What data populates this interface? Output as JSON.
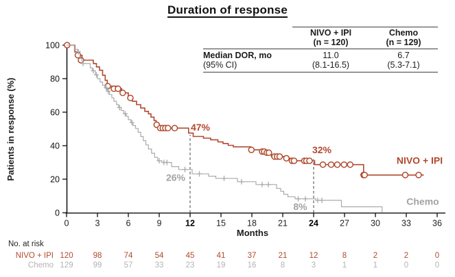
{
  "title": "Duration of response",
  "inset_table": {
    "row_header": {
      "label": "Median DOR, mo",
      "sublabel": "(95% CI)"
    },
    "columns": [
      {
        "name": "NIVO + IPI",
        "n": "(n = 120)",
        "median": "11.0",
        "ci": "(8.1-16.5)"
      },
      {
        "name": "Chemo",
        "n": "(n = 129)",
        "median": "6.7",
        "ci": "(5.3-7.1)"
      }
    ]
  },
  "chart_data": {
    "type": "line",
    "subtype": "kaplan-meier-step",
    "title": "Duration of response",
    "xlabel": "Months",
    "ylabel": "Patients in response (%)",
    "xlim": [
      0,
      36
    ],
    "ylim": [
      0,
      100
    ],
    "xticks": [
      0,
      3,
      6,
      9,
      12,
      15,
      18,
      21,
      24,
      27,
      30,
      33,
      36
    ],
    "yticks": [
      0,
      20,
      40,
      60,
      80,
      100
    ],
    "bold_xticks": [
      12,
      24
    ],
    "grid": false,
    "reference_lines": [
      {
        "month": 12,
        "pct_top": 46.5
      },
      {
        "month": 24,
        "pct_top": 32
      }
    ],
    "series": [
      {
        "name": "NIVO + IPI",
        "color": "#b04a2e",
        "censor_marker": "circle",
        "steps": [
          [
            0,
            100
          ],
          [
            0.8,
            96
          ],
          [
            1.2,
            94
          ],
          [
            1.5,
            91
          ],
          [
            2.6,
            89
          ],
          [
            2.9,
            87
          ],
          [
            3.2,
            85
          ],
          [
            3.5,
            82
          ],
          [
            3.75,
            79
          ],
          [
            3.95,
            75.5
          ],
          [
            4.9,
            74
          ],
          [
            5.35,
            71.5
          ],
          [
            6.0,
            68.5
          ],
          [
            6.4,
            66.5
          ],
          [
            6.8,
            64.5
          ],
          [
            7.2,
            62.5
          ],
          [
            7.6,
            60.5
          ],
          [
            7.95,
            59
          ],
          [
            8.2,
            57
          ],
          [
            8.5,
            55
          ],
          [
            8.7,
            52.5
          ],
          [
            8.95,
            50.5
          ],
          [
            11.85,
            47.5
          ],
          [
            12.3,
            45.5
          ],
          [
            13.3,
            44.5
          ],
          [
            14.0,
            43.5
          ],
          [
            14.7,
            42.3
          ],
          [
            15.2,
            41.3
          ],
          [
            15.7,
            40.2
          ],
          [
            16.2,
            39.3
          ],
          [
            17.9,
            37.5
          ],
          [
            18.9,
            36.5
          ],
          [
            19.4,
            35.8
          ],
          [
            19.9,
            33.5
          ],
          [
            21.2,
            32.5
          ],
          [
            21.8,
            31
          ],
          [
            24.1,
            28.7
          ],
          [
            28.85,
            22.5
          ],
          [
            34.7,
            22.5
          ]
        ],
        "censors": [
          [
            0.05,
            100
          ],
          [
            1.1,
            94
          ],
          [
            1.4,
            91
          ],
          [
            4.0,
            75.5
          ],
          [
            4.6,
            74
          ],
          [
            5.0,
            74
          ],
          [
            5.45,
            71.5
          ],
          [
            6.2,
            68.5
          ],
          [
            8.75,
            52.5
          ],
          [
            9.1,
            50.5
          ],
          [
            9.35,
            50.5
          ],
          [
            9.6,
            50.5
          ],
          [
            9.85,
            50.5
          ],
          [
            10.5,
            50.5
          ],
          [
            17.95,
            37.5
          ],
          [
            19.0,
            36.5
          ],
          [
            19.2,
            36.5
          ],
          [
            19.45,
            35.8
          ],
          [
            19.65,
            35.8
          ],
          [
            20.2,
            33.5
          ],
          [
            20.45,
            33.5
          ],
          [
            20.7,
            33.5
          ],
          [
            21.35,
            32.5
          ],
          [
            21.9,
            31
          ],
          [
            22.1,
            31
          ],
          [
            23.1,
            31
          ],
          [
            23.3,
            31
          ],
          [
            23.6,
            31
          ],
          [
            24.9,
            28.7
          ],
          [
            25.7,
            28.7
          ],
          [
            26.3,
            28.7
          ],
          [
            26.95,
            28.7
          ],
          [
            27.55,
            28.7
          ],
          [
            28.85,
            22.5
          ],
          [
            28.95,
            22.5
          ],
          [
            32.9,
            22.5
          ],
          [
            34.2,
            22.5
          ]
        ]
      },
      {
        "name": "Chemo",
        "color": "#ababab",
        "censor_marker": "plus",
        "steps": [
          [
            0,
            100
          ],
          [
            0.75,
            97.5
          ],
          [
            1.05,
            96
          ],
          [
            1.3,
            92
          ],
          [
            1.5,
            89
          ],
          [
            2.3,
            86.5
          ],
          [
            2.5,
            84.7
          ],
          [
            2.8,
            82.3
          ],
          [
            3.0,
            80
          ],
          [
            3.25,
            78
          ],
          [
            3.5,
            76
          ],
          [
            3.75,
            74.5
          ],
          [
            3.95,
            72.5
          ],
          [
            4.15,
            70.5
          ],
          [
            4.4,
            68.5
          ],
          [
            4.6,
            66.5
          ],
          [
            4.85,
            64.5
          ],
          [
            5.05,
            62.7
          ],
          [
            5.3,
            61
          ],
          [
            5.55,
            59
          ],
          [
            5.8,
            57.5
          ],
          [
            6.0,
            55.5
          ],
          [
            6.25,
            53.8
          ],
          [
            6.45,
            52
          ],
          [
            6.7,
            50.3
          ],
          [
            6.95,
            48
          ],
          [
            7.2,
            45.5
          ],
          [
            7.45,
            43
          ],
          [
            7.7,
            40.5
          ],
          [
            7.95,
            38
          ],
          [
            8.25,
            35.5
          ],
          [
            8.55,
            33
          ],
          [
            8.85,
            31
          ],
          [
            9.25,
            30
          ],
          [
            10.2,
            27.5
          ],
          [
            10.9,
            25.8
          ],
          [
            12.2,
            23.2
          ],
          [
            13.8,
            21.8
          ],
          [
            14.5,
            20.5
          ],
          [
            16.6,
            18.5
          ],
          [
            18.4,
            16.8
          ],
          [
            20.4,
            14.5
          ],
          [
            20.8,
            12.8
          ],
          [
            21.1,
            11
          ],
          [
            21.5,
            9.5
          ],
          [
            22.2,
            8.3
          ],
          [
            24.2,
            7.4
          ],
          [
            26.7,
            3.5
          ],
          [
            30.65,
            0.3
          ]
        ],
        "censors": [
          [
            1.15,
            96
          ],
          [
            1.6,
            89
          ],
          [
            2.6,
            84.7
          ],
          [
            2.9,
            82.3
          ],
          [
            3.85,
            74.5
          ],
          [
            4.05,
            72.5
          ],
          [
            5.15,
            62.7
          ],
          [
            5.7,
            59
          ],
          [
            6.35,
            53.8
          ],
          [
            9.0,
            31
          ],
          [
            9.45,
            30
          ],
          [
            9.75,
            30
          ],
          [
            11.5,
            25.8
          ],
          [
            12.9,
            23.2
          ],
          [
            15.3,
            20.5
          ],
          [
            17.0,
            18.5
          ],
          [
            19.0,
            16.8
          ],
          [
            19.6,
            16.8
          ],
          [
            22.5,
            8.3
          ],
          [
            23.2,
            8.3
          ],
          [
            24.4,
            7.4
          ],
          [
            24.8,
            7.4
          ]
        ]
      }
    ],
    "annotations": [
      {
        "text": "47%",
        "month": 13.0,
        "pct": 51.0,
        "color": "#b04a2e"
      },
      {
        "text": "32%",
        "month": 24.8,
        "pct": 37.5,
        "color": "#b04a2e"
      },
      {
        "text": "26%",
        "month": 10.6,
        "pct": 21.0,
        "color": "#a3a3a3"
      },
      {
        "text": "8%",
        "month": 22.7,
        "pct": 3.6,
        "color": "#a3a3a3"
      }
    ],
    "series_labels": [
      {
        "text": "NIVO + IPI",
        "month": 34.3,
        "pct": 31.3,
        "color": "#b04a2e"
      },
      {
        "text": "Chemo",
        "month": 34.6,
        "pct": 6.8,
        "color": "#a3a3a3"
      }
    ]
  },
  "at_risk": {
    "heading": "No. at risk",
    "months": [
      0,
      3,
      6,
      9,
      12,
      15,
      18,
      21,
      24,
      27,
      30,
      33,
      36
    ],
    "rows": [
      {
        "name": "NIVO + IPI",
        "color": "#b04a2e",
        "values": [
          120,
          98,
          74,
          54,
          45,
          41,
          37,
          21,
          12,
          8,
          2,
          2,
          0
        ]
      },
      {
        "name": "Chemo",
        "color": "#b3b3b3",
        "values": [
          129,
          99,
          57,
          33,
          23,
          19,
          16,
          8,
          3,
          1,
          1,
          0,
          0
        ]
      }
    ]
  }
}
